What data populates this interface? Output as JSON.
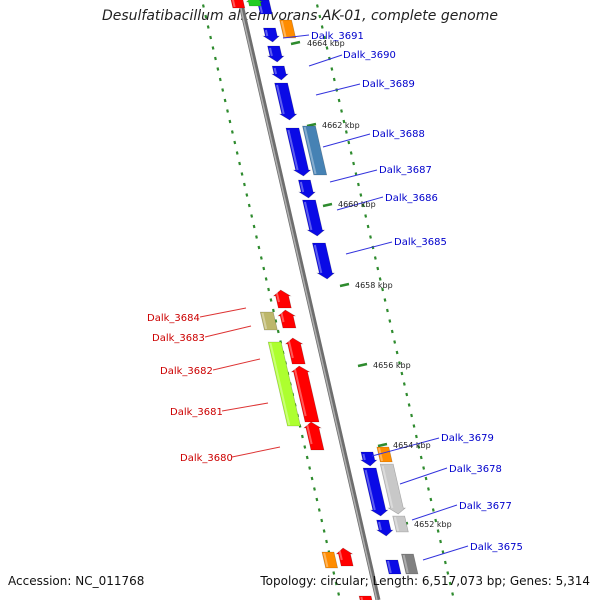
{
  "title": "Desulfatibacillum alkenivorans AK-01, complete genome",
  "accession": "Accession: NC_011768",
  "summary": "Topology: circular; Length: 6,517,073 bp; Genes: 5,314",
  "colors": {
    "forward_label": "#0000cc",
    "reverse_label": "#cc0000",
    "backbone": "#808080",
    "ticks": "#2e8b2e"
  },
  "kbp_marks": [
    {
      "label": "4664 kbp"
    },
    {
      "label": "4662 kbp"
    },
    {
      "label": "4660 kbp"
    },
    {
      "label": "4658 kbp"
    },
    {
      "label": "4656 kbp"
    },
    {
      "label": "4654 kbp"
    },
    {
      "label": "4652 kbp"
    }
  ],
  "forward_genes": [
    {
      "label": "Dalk_3691"
    },
    {
      "label": "Dalk_3690"
    },
    {
      "label": "Dalk_3689"
    },
    {
      "label": "Dalk_3688"
    },
    {
      "label": "Dalk_3687"
    },
    {
      "label": "Dalk_3686"
    },
    {
      "label": "Dalk_3685"
    },
    {
      "label": "Dalk_3679"
    },
    {
      "label": "Dalk_3678"
    },
    {
      "label": "Dalk_3677"
    },
    {
      "label": "Dalk_3675"
    }
  ],
  "reverse_genes": [
    {
      "label": "Dalk_3684"
    },
    {
      "label": "Dalk_3683"
    },
    {
      "label": "Dalk_3682"
    },
    {
      "label": "Dalk_3681"
    },
    {
      "label": "Dalk_3680"
    }
  ]
}
